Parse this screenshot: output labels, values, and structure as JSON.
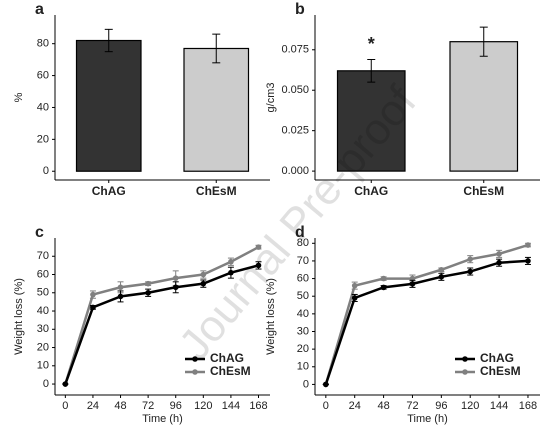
{
  "chart_data": [
    {
      "type": "bar",
      "panel_label": "a",
      "ylabel": "%",
      "categories": [
        "ChAG",
        "ChEsM"
      ],
      "values": [
        82,
        77
      ],
      "errors": [
        7,
        9
      ],
      "colors": [
        "#333333",
        "#cccccc"
      ],
      "ylim": [
        -5.5,
        98
      ],
      "yticks": [
        0,
        20,
        40,
        60,
        80
      ]
    },
    {
      "type": "bar",
      "panel_label": "b",
      "ylabel": "g/cm3",
      "categories": [
        "ChAG",
        "ChEsM"
      ],
      "values": [
        0.062,
        0.08
      ],
      "errors": [
        0.007,
        0.009
      ],
      "colors": [
        "#333333",
        "#cccccc"
      ],
      "annotation": "*",
      "ylim": [
        -0.0055,
        0.0965
      ],
      "yticks": [
        {
          "value": 0,
          "label": "0.000"
        },
        0.025,
        {
          "value": 0.05,
          "label": "0.050"
        },
        0.075
      ]
    },
    {
      "type": "line",
      "panel_label": "c",
      "xlabel": "Time (h)",
      "ylabel": "Weight loss (%)",
      "x": [
        0,
        24,
        48,
        72,
        96,
        120,
        144,
        168
      ],
      "series": [
        {
          "name": "ChAG",
          "color": "#000000",
          "values": [
            0,
            42,
            48,
            50,
            53,
            55,
            61,
            65
          ],
          "errors": [
            0,
            1,
            3,
            2,
            3,
            2,
            3,
            2
          ]
        },
        {
          "name": "ChEsM",
          "color": "#808080",
          "values": [
            0,
            49,
            53,
            55,
            58,
            60,
            67,
            75
          ],
          "errors": [
            0,
            2,
            3,
            1,
            4,
            2,
            2,
            1
          ]
        }
      ],
      "xlim": [
        -9,
        178
      ],
      "ylim": [
        -6,
        80
      ],
      "xticks": [
        0,
        24,
        48,
        72,
        96,
        120,
        144,
        168
      ],
      "yticks": [
        0,
        10,
        20,
        30,
        40,
        50,
        60,
        70
      ],
      "legend": "bottom-right"
    },
    {
      "type": "line",
      "panel_label": "d",
      "xlabel": "Time (h)",
      "ylabel": "Weight loss (%)",
      "x": [
        0,
        24,
        48,
        72,
        96,
        120,
        144,
        168
      ],
      "series": [
        {
          "name": "ChAG",
          "color": "#000000",
          "values": [
            0,
            49,
            55,
            57,
            61,
            64,
            69,
            70
          ],
          "errors": [
            0,
            2,
            1,
            2,
            2,
            2,
            2,
            2
          ]
        },
        {
          "name": "ChEsM",
          "color": "#808080",
          "values": [
            0,
            56,
            60,
            60,
            65,
            71,
            74,
            79
          ],
          "errors": [
            0,
            2,
            1,
            2,
            1,
            2,
            2,
            1
          ]
        }
      ],
      "xlim": [
        -9,
        178
      ],
      "ylim": [
        -6,
        83
      ],
      "xticks": [
        0,
        24,
        48,
        72,
        96,
        120,
        144,
        168
      ],
      "yticks": [
        0,
        10,
        20,
        30,
        40,
        50,
        60,
        70,
        80
      ],
      "legend": "bottom-right"
    }
  ],
  "watermark": "Journal Pre-proof"
}
